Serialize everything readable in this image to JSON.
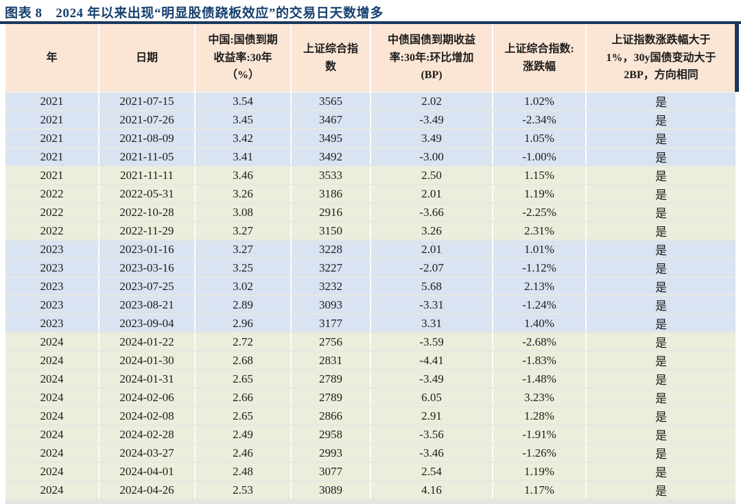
{
  "colors": {
    "accent_navy": "#17375E",
    "title_text": "#16406E",
    "header_bg": "#FBE5D5",
    "row_blue": "#D9E3F1",
    "row_green": "#EBEEDA"
  },
  "chart_data": {
    "type": "table",
    "title": "图表 8　2024 年以来出现“明显股债跷板效应”的交易日天数增多",
    "columns": [
      "年",
      "日期",
      "中国:国债到期\n收益率:30年\n（%）",
      "上证综合指\n数",
      "中债国债到期收益\n率:30年:环比增加\n(BP)",
      "上证综合指数:\n涨跌幅",
      "上证指数涨跌幅大于\n1%，30y国债变动大于\n2BP，方向相同"
    ],
    "rows": [
      [
        "2021",
        "2021-07-15",
        "3.54",
        "3565",
        "2.02",
        "1.02%",
        "是"
      ],
      [
        "2021",
        "2021-07-26",
        "3.45",
        "3467",
        "-3.49",
        "-2.34%",
        "是"
      ],
      [
        "2021",
        "2021-08-09",
        "3.42",
        "3495",
        "3.49",
        "1.05%",
        "是"
      ],
      [
        "2021",
        "2021-11-05",
        "3.41",
        "3492",
        "-3.00",
        "-1.00%",
        "是"
      ],
      [
        "2021",
        "2021-11-11",
        "3.46",
        "3533",
        "2.50",
        "1.15%",
        "是"
      ],
      [
        "2022",
        "2022-05-31",
        "3.26",
        "3186",
        "2.01",
        "1.19%",
        "是"
      ],
      [
        "2022",
        "2022-10-28",
        "3.08",
        "2916",
        "-3.66",
        "-2.25%",
        "是"
      ],
      [
        "2022",
        "2022-11-29",
        "3.27",
        "3150",
        "3.26",
        "2.31%",
        "是"
      ],
      [
        "2023",
        "2023-01-16",
        "3.27",
        "3228",
        "2.01",
        "1.01%",
        "是"
      ],
      [
        "2023",
        "2023-03-16",
        "3.25",
        "3227",
        "-2.07",
        "-1.12%",
        "是"
      ],
      [
        "2023",
        "2023-07-25",
        "3.02",
        "3232",
        "5.68",
        "2.13%",
        "是"
      ],
      [
        "2023",
        "2023-08-21",
        "2.89",
        "3093",
        "-3.31",
        "-1.24%",
        "是"
      ],
      [
        "2023",
        "2023-09-04",
        "2.96",
        "3177",
        "3.31",
        "1.40%",
        "是"
      ],
      [
        "2024",
        "2024-01-22",
        "2.72",
        "2756",
        "-3.59",
        "-2.68%",
        "是"
      ],
      [
        "2024",
        "2024-01-30",
        "2.68",
        "2831",
        "-4.41",
        "-1.83%",
        "是"
      ],
      [
        "2024",
        "2024-01-31",
        "2.65",
        "2789",
        "-3.49",
        "-1.48%",
        "是"
      ],
      [
        "2024",
        "2024-02-06",
        "2.66",
        "2789",
        "6.05",
        "3.23%",
        "是"
      ],
      [
        "2024",
        "2024-02-08",
        "2.65",
        "2866",
        "2.91",
        "1.28%",
        "是"
      ],
      [
        "2024",
        "2024-02-28",
        "2.49",
        "2958",
        "-3.56",
        "-1.91%",
        "是"
      ],
      [
        "2024",
        "2024-03-27",
        "2.46",
        "2993",
        "-3.46",
        "-1.26%",
        "是"
      ],
      [
        "2024",
        "2024-04-01",
        "2.48",
        "3077",
        "2.54",
        "1.19%",
        "是"
      ],
      [
        "2024",
        "2024-04-26",
        "2.53",
        "3089",
        "4.16",
        "1.17%",
        "是"
      ]
    ],
    "row_colors": [
      "blue",
      "blue",
      "blue",
      "blue",
      "green",
      "green",
      "green",
      "green",
      "blue",
      "blue",
      "blue",
      "blue",
      "blue",
      "green",
      "green",
      "green",
      "green",
      "green",
      "green",
      "green",
      "green",
      "green"
    ]
  }
}
